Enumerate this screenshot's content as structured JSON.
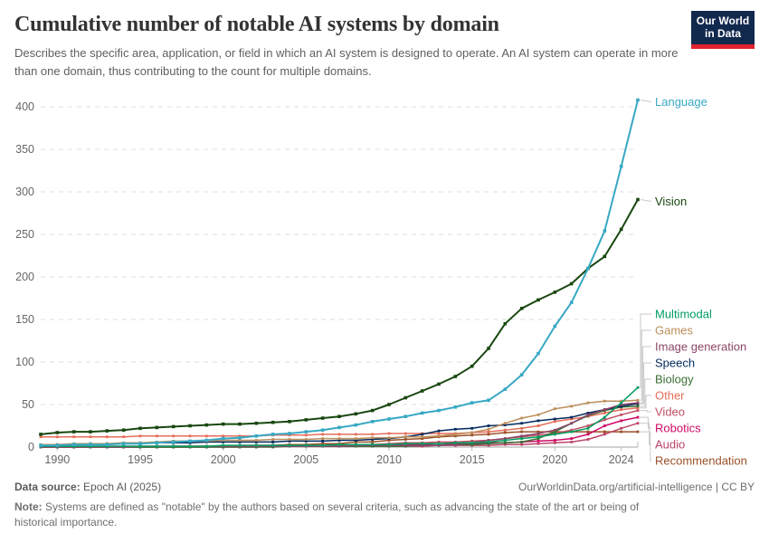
{
  "header": {
    "title": "Cumulative number of notable AI systems by domain",
    "subtitle": "Describes the specific area, application, or field in which an AI system is designed to operate. An AI system can operate in more than one domain, thus contributing to the count for multiple domains."
  },
  "logo": {
    "line1": "Our World",
    "line2": "in Data",
    "navy": "#12294e",
    "red": "#e0232e"
  },
  "footer": {
    "source_label": "Data source:",
    "source_value": "Epoch AI (2025)",
    "link": "OurWorldinData.org/artificial-intelligence | CC BY",
    "note_label": "Note:",
    "note_text": "Systems are defined as \"notable\" by the authors based on several criteria, such as advancing the state of the art or being of historical importance."
  },
  "chart_data": {
    "type": "line",
    "title": "Cumulative number of notable AI systems by domain",
    "xlabel": "",
    "ylabel": "",
    "ylim": [
      0,
      400
    ],
    "yticks": [
      0,
      50,
      100,
      150,
      200,
      250,
      300,
      350,
      400
    ],
    "xticks": [
      1990,
      1995,
      2000,
      2005,
      2010,
      2015,
      2020,
      2024
    ],
    "grid": "dashed-horizontal",
    "legend_position": "right-edge-labels",
    "x": [
      1989,
      1990,
      1991,
      1992,
      1993,
      1994,
      1995,
      1996,
      1997,
      1998,
      1999,
      2000,
      2001,
      2002,
      2003,
      2004,
      2005,
      2006,
      2007,
      2008,
      2009,
      2010,
      2011,
      2012,
      2013,
      2014,
      2015,
      2016,
      2017,
      2018,
      2019,
      2020,
      2021,
      2022,
      2023,
      2024,
      2025
    ],
    "series": [
      {
        "name": "Language",
        "color": "#38a8c4",
        "values": [
          2,
          2,
          3,
          3,
          3,
          4,
          4,
          5,
          6,
          7,
          8,
          10,
          11,
          13,
          15,
          16,
          18,
          20,
          23,
          26,
          30,
          33,
          36,
          40,
          43,
          47,
          52,
          55,
          68,
          85,
          110,
          142,
          170,
          210,
          254,
          330,
          408
        ]
      },
      {
        "name": "Vision",
        "color": "#18470f",
        "values": [
          15,
          17,
          18,
          18,
          19,
          20,
          22,
          23,
          24,
          25,
          26,
          27,
          27,
          28,
          29,
          30,
          32,
          34,
          36,
          39,
          43,
          50,
          58,
          66,
          74,
          83,
          95,
          116,
          145,
          163,
          173,
          182,
          192,
          210,
          224,
          256,
          291
        ]
      },
      {
        "name": "Multimodal",
        "color": "#009e60",
        "values": [
          1,
          1,
          1,
          1,
          1,
          1,
          1,
          1,
          1,
          1,
          1,
          2,
          2,
          2,
          2,
          2,
          2,
          2,
          3,
          3,
          3,
          3,
          4,
          4,
          4,
          5,
          5,
          6,
          8,
          10,
          12,
          15,
          18,
          22,
          35,
          52,
          70
        ]
      },
      {
        "name": "Games",
        "color": "#bc8e5a",
        "values": [
          3,
          3,
          4,
          4,
          4,
          5,
          5,
          6,
          7,
          7,
          7,
          8,
          8,
          8,
          9,
          9,
          9,
          10,
          10,
          10,
          11,
          11,
          12,
          12,
          13,
          15,
          17,
          21,
          28,
          34,
          38,
          45,
          48,
          52,
          54,
          54,
          55
        ]
      },
      {
        "name": "Image generation",
        "color": "#8c4569",
        "values": [
          0,
          0,
          0,
          0,
          0,
          0,
          1,
          1,
          1,
          1,
          1,
          1,
          1,
          1,
          1,
          1,
          1,
          1,
          1,
          2,
          2,
          2,
          2,
          2,
          2,
          3,
          5,
          8,
          10,
          13,
          16,
          20,
          28,
          38,
          44,
          50,
          52
        ]
      },
      {
        "name": "Speech",
        "color": "#00295d",
        "values": [
          2,
          3,
          3,
          4,
          4,
          4,
          5,
          5,
          5,
          5,
          6,
          6,
          6,
          6,
          6,
          7,
          7,
          7,
          8,
          8,
          9,
          10,
          12,
          15,
          19,
          21,
          22,
          25,
          26,
          28,
          31,
          33,
          35,
          40,
          44,
          48,
          51
        ]
      },
      {
        "name": "Biology",
        "color": "#3b6e35",
        "values": [
          0,
          0,
          0,
          0,
          0,
          0,
          0,
          0,
          0,
          0,
          0,
          0,
          0,
          0,
          0,
          1,
          1,
          1,
          1,
          1,
          1,
          1,
          1,
          2,
          2,
          3,
          3,
          4,
          5,
          6,
          10,
          18,
          28,
          37,
          43,
          47,
          48
        ]
      },
      {
        "name": "Other",
        "color": "#e56e5a",
        "values": [
          12,
          12,
          12,
          12,
          12,
          12,
          13,
          13,
          13,
          13,
          13,
          13,
          13,
          13,
          14,
          14,
          14,
          15,
          15,
          15,
          15,
          16,
          16,
          16,
          16,
          16,
          17,
          18,
          20,
          22,
          25,
          30,
          33,
          36,
          40,
          44,
          46
        ]
      },
      {
        "name": "Video",
        "color": "#c15065",
        "values": [
          0,
          0,
          0,
          0,
          0,
          0,
          0,
          0,
          1,
          1,
          1,
          1,
          1,
          1,
          1,
          1,
          1,
          2,
          2,
          3,
          3,
          4,
          5,
          5,
          6,
          6,
          7,
          8,
          10,
          12,
          14,
          16,
          20,
          25,
          32,
          38,
          43
        ]
      },
      {
        "name": "Robotics",
        "color": "#cf0a66",
        "values": [
          1,
          1,
          1,
          1,
          1,
          1,
          1,
          1,
          1,
          1,
          1,
          1,
          2,
          2,
          2,
          2,
          2,
          2,
          2,
          2,
          3,
          3,
          3,
          3,
          4,
          4,
          4,
          5,
          5,
          6,
          7,
          8,
          10,
          15,
          25,
          31,
          35
        ]
      },
      {
        "name": "Audio",
        "color": "#bc4569",
        "values": [
          0,
          0,
          0,
          0,
          0,
          0,
          0,
          0,
          0,
          0,
          0,
          0,
          0,
          0,
          1,
          1,
          1,
          1,
          1,
          1,
          1,
          1,
          1,
          1,
          2,
          2,
          2,
          2,
          3,
          3,
          4,
          5,
          6,
          9,
          15,
          22,
          28
        ]
      },
      {
        "name": "Recommendation",
        "color": "#9a5129",
        "values": [
          0,
          0,
          0,
          0,
          0,
          0,
          0,
          0,
          0,
          0,
          0,
          1,
          1,
          2,
          2,
          3,
          3,
          4,
          4,
          6,
          6,
          8,
          9,
          10,
          12,
          13,
          14,
          15,
          17,
          18,
          18,
          18,
          18,
          18,
          18,
          18,
          18
        ]
      }
    ]
  }
}
